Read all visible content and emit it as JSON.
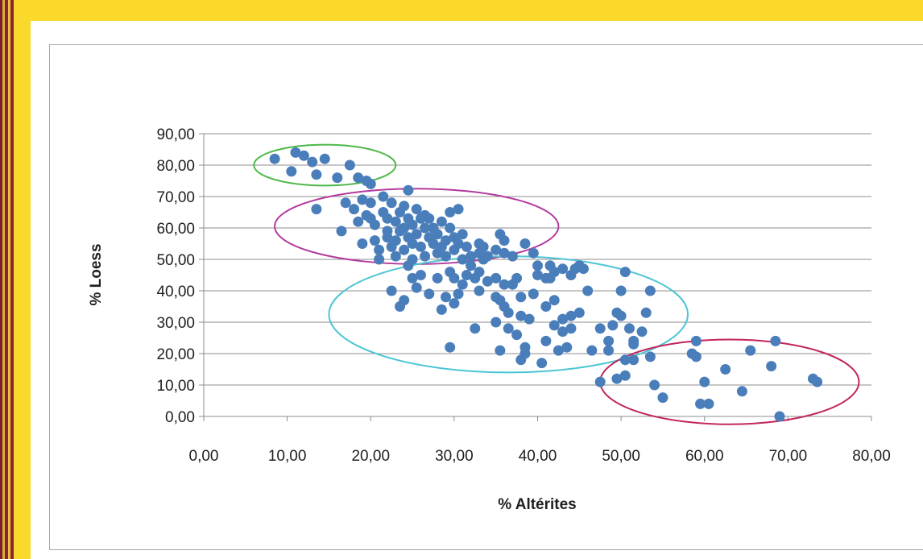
{
  "chart_data": {
    "type": "scatter",
    "xlabel": "% Altérites",
    "ylabel": "% Loess",
    "xlim": [
      0,
      80
    ],
    "ylim": [
      0,
      90
    ],
    "x_ticks": [
      "0,00",
      "10,00",
      "20,00",
      "30,00",
      "40,00",
      "50,00",
      "60,00",
      "70,00",
      "80,00"
    ],
    "y_ticks": [
      "0,00",
      "10,00",
      "20,00",
      "30,00",
      "40,00",
      "50,00",
      "60,00",
      "70,00",
      "80,00",
      "90,00"
    ],
    "grid": "horizontal",
    "marker_color": "#4a7ebb",
    "series": [
      {
        "points": [
          [
            8.5,
            82
          ],
          [
            10.5,
            78
          ],
          [
            11,
            84
          ],
          [
            12,
            83
          ],
          [
            13,
            81
          ],
          [
            13.5,
            77
          ],
          [
            14.5,
            82
          ],
          [
            16,
            76
          ],
          [
            17.5,
            80
          ],
          [
            18.5,
            76
          ],
          [
            19.5,
            75
          ],
          [
            20,
            74
          ],
          [
            13.5,
            66
          ],
          [
            17,
            68
          ],
          [
            16.5,
            59
          ],
          [
            18,
            66
          ],
          [
            18.5,
            62
          ],
          [
            19,
            69
          ],
          [
            19.5,
            64
          ],
          [
            20,
            68
          ],
          [
            20,
            63
          ],
          [
            20.5,
            61
          ],
          [
            19,
            55
          ],
          [
            20.5,
            56
          ],
          [
            21,
            50
          ],
          [
            21,
            53
          ],
          [
            21.5,
            65
          ],
          [
            21.5,
            70
          ],
          [
            22,
            59
          ],
          [
            22,
            63
          ],
          [
            22,
            57
          ],
          [
            22.5,
            54
          ],
          [
            22.5,
            68
          ],
          [
            23,
            62
          ],
          [
            23,
            56
          ],
          [
            23,
            51
          ],
          [
            23.5,
            65
          ],
          [
            23.5,
            59
          ],
          [
            24,
            67
          ],
          [
            24,
            60
          ],
          [
            24,
            53
          ],
          [
            24.5,
            72
          ],
          [
            24.5,
            63
          ],
          [
            24.5,
            57
          ],
          [
            25,
            61
          ],
          [
            25,
            55
          ],
          [
            25,
            50
          ],
          [
            25.5,
            66
          ],
          [
            25.5,
            58
          ],
          [
            26,
            63
          ],
          [
            26,
            54
          ],
          [
            26.5,
            64
          ],
          [
            26.5,
            60
          ],
          [
            26.5,
            51
          ],
          [
            27,
            57
          ],
          [
            27,
            63
          ],
          [
            27.5,
            55
          ],
          [
            27.5,
            60
          ],
          [
            28,
            52
          ],
          [
            28,
            58
          ],
          [
            28.5,
            54
          ],
          [
            28.5,
            62
          ],
          [
            29,
            56
          ],
          [
            29,
            51
          ],
          [
            29.5,
            60
          ],
          [
            29.5,
            65
          ],
          [
            30,
            57
          ],
          [
            30,
            53
          ],
          [
            30.5,
            55
          ],
          [
            30.5,
            66
          ],
          [
            31,
            58
          ],
          [
            31,
            50
          ],
          [
            31.5,
            54
          ],
          [
            32,
            51
          ],
          [
            33,
            52
          ],
          [
            33,
            55
          ],
          [
            33.5,
            54
          ],
          [
            34,
            51
          ],
          [
            35,
            53
          ],
          [
            35.5,
            58
          ],
          [
            36,
            56
          ],
          [
            36,
            52
          ],
          [
            37,
            51
          ],
          [
            38.5,
            55
          ],
          [
            39.5,
            52
          ],
          [
            40,
            48
          ],
          [
            41,
            44
          ],
          [
            41.5,
            48
          ],
          [
            42,
            46
          ],
          [
            43,
            47
          ],
          [
            44,
            45
          ],
          [
            44.5,
            47
          ],
          [
            45,
            48
          ],
          [
            45.5,
            47
          ],
          [
            22.5,
            40
          ],
          [
            23.5,
            35
          ],
          [
            24,
            37
          ],
          [
            24.5,
            48
          ],
          [
            25,
            44
          ],
          [
            25.5,
            41
          ],
          [
            26,
            45
          ],
          [
            27,
            39
          ],
          [
            28,
            44
          ],
          [
            28.5,
            34
          ],
          [
            29,
            38
          ],
          [
            29.5,
            46
          ],
          [
            30,
            44
          ],
          [
            30,
            36
          ],
          [
            30.5,
            39
          ],
          [
            31,
            42
          ],
          [
            31.5,
            45
          ],
          [
            32,
            48
          ],
          [
            32.5,
            44
          ],
          [
            33,
            40
          ],
          [
            33,
            46
          ],
          [
            33.5,
            50
          ],
          [
            34,
            43
          ],
          [
            35,
            38
          ],
          [
            35,
            44
          ],
          [
            35.5,
            37
          ],
          [
            36,
            42
          ],
          [
            36,
            35
          ],
          [
            36.5,
            33
          ],
          [
            36.5,
            28
          ],
          [
            37,
            42
          ],
          [
            37.5,
            44
          ],
          [
            38,
            32
          ],
          [
            38,
            38
          ],
          [
            38.5,
            22
          ],
          [
            39,
            31
          ],
          [
            39.5,
            39
          ],
          [
            40,
            45
          ],
          [
            41,
            35
          ],
          [
            41.5,
            44
          ],
          [
            42,
            37
          ],
          [
            42,
            29
          ],
          [
            43,
            31
          ],
          [
            43,
            27
          ],
          [
            43.5,
            22
          ],
          [
            44,
            28
          ],
          [
            45,
            33
          ],
          [
            46,
            40
          ],
          [
            46.5,
            21
          ],
          [
            47.5,
            28
          ],
          [
            48.5,
            21
          ],
          [
            48.5,
            24
          ],
          [
            49,
            29
          ],
          [
            49.5,
            33
          ],
          [
            50,
            32
          ],
          [
            50,
            40
          ],
          [
            50.5,
            46
          ],
          [
            51,
            28
          ],
          [
            51.5,
            18
          ],
          [
            51.5,
            23
          ],
          [
            52.5,
            27
          ],
          [
            53,
            33
          ],
          [
            53.5,
            40
          ],
          [
            29.5,
            22
          ],
          [
            32.5,
            28
          ],
          [
            35,
            30
          ],
          [
            35.5,
            21
          ],
          [
            37.5,
            26
          ],
          [
            38,
            18
          ],
          [
            38.5,
            20
          ],
          [
            40.5,
            17
          ],
          [
            41,
            24
          ],
          [
            42.5,
            21
          ],
          [
            44,
            32
          ],
          [
            47.5,
            11
          ],
          [
            49.5,
            12
          ],
          [
            50.5,
            18
          ],
          [
            50.5,
            13
          ],
          [
            51.5,
            24
          ],
          [
            53.5,
            19
          ],
          [
            54,
            10
          ],
          [
            55,
            6
          ],
          [
            58.5,
            20
          ],
          [
            59,
            24
          ],
          [
            59,
            19
          ],
          [
            59.5,
            4
          ],
          [
            60,
            11
          ],
          [
            60.5,
            4
          ],
          [
            62.5,
            15
          ],
          [
            64.5,
            8
          ],
          [
            65.5,
            21
          ],
          [
            68,
            16
          ],
          [
            68.5,
            24
          ],
          [
            69,
            0
          ],
          [
            73,
            12
          ],
          [
            73.5,
            11
          ]
        ]
      }
    ],
    "ellipses": [
      {
        "color": "#4db848",
        "cx": 14.5,
        "cy": 80,
        "rx": 8.5,
        "ry": 6.5
      },
      {
        "color": "#b33a9e",
        "cx": 25.5,
        "cy": 60.5,
        "rx": 17,
        "ry": 12
      },
      {
        "color": "#4dc5d4",
        "cx": 36.5,
        "cy": 32.5,
        "rx": 21.5,
        "ry": 18.5
      },
      {
        "color": "#c2245e",
        "cx": 63,
        "cy": 11,
        "rx": 15.5,
        "ry": 13.5
      }
    ]
  }
}
